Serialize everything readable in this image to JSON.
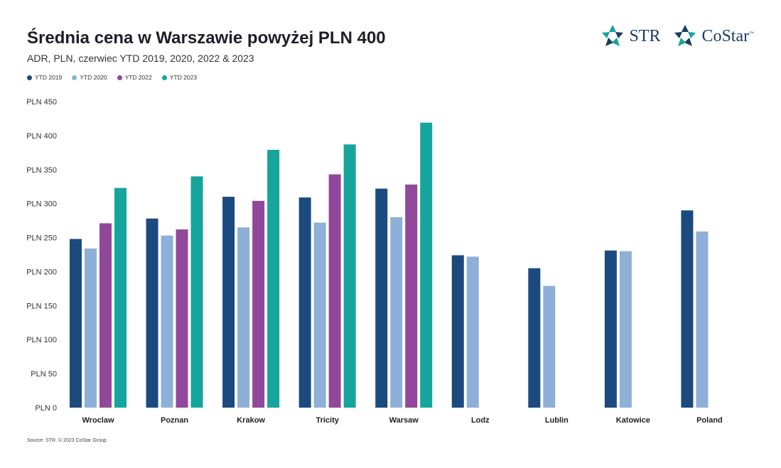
{
  "title": "Średnia cena w Warszawie powyżej PLN 400",
  "subtitle": "ADR, PLN, czerwiec YTD 2019, 2020, 2022 & 2023",
  "source": "Source: STR. © 2023 CoStar Group",
  "logos": {
    "str": "STR",
    "costar": "CoStar",
    "costar_tm": "™"
  },
  "colors": {
    "ytd2019": "#1b4a7e",
    "ytd2020": "#8eafd8",
    "ytd2022": "#92489a",
    "ytd2023": "#16a59c",
    "logo": "#1b3d5e"
  },
  "chart_data": {
    "type": "bar",
    "categories": [
      "Wroclaw",
      "Poznan",
      "Krakow",
      "Tricity",
      "Warsaw",
      "Lodz",
      "Lublin",
      "Katowice",
      "Poland"
    ],
    "series": [
      {
        "name": "YTD 2019",
        "color": "#1b4a7e",
        "values": [
          248,
          278,
          310,
          309,
          322,
          224,
          205,
          231,
          290
        ]
      },
      {
        "name": "YTD 2020",
        "color": "#8eafd8",
        "values": [
          234,
          253,
          265,
          272,
          280,
          222,
          179,
          230,
          259
        ]
      },
      {
        "name": "YTD 2022",
        "color": "#92489a",
        "values": [
          271,
          262,
          304,
          343,
          328,
          null,
          null,
          null,
          null
        ]
      },
      {
        "name": "YTD 2023",
        "color": "#16a59c",
        "values": [
          323,
          340,
          379,
          387,
          419,
          null,
          null,
          null,
          null
        ]
      }
    ],
    "ytick_labels": [
      "PLN 0",
      "PLN 50",
      "PLN 100",
      "PLN 150",
      "PLN 200",
      "PLN 250",
      "PLN 300",
      "PLN 350",
      "PLN 400",
      "PLN 450"
    ],
    "ylim": [
      0,
      450
    ],
    "grid": false,
    "legend_position": "top-left"
  }
}
